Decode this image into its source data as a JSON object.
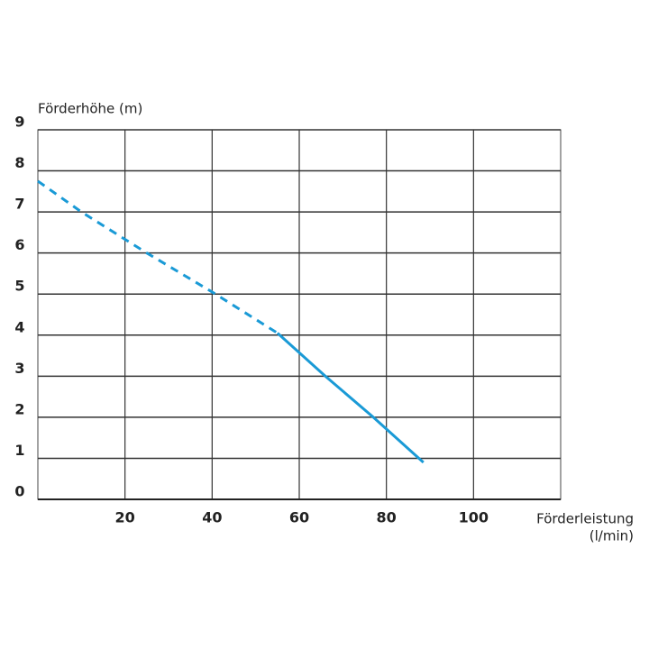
{
  "chart_data": {
    "type": "line",
    "y_label": "Förderhöhe (m)",
    "x_label": [
      "Förderleistung",
      "(l/min)"
    ],
    "xlim": [
      0,
      120
    ],
    "xticks": [
      20,
      40,
      60,
      80,
      100
    ],
    "ylim": [
      0,
      9
    ],
    "yticks": [
      0,
      1,
      2,
      3,
      4,
      5,
      6,
      7,
      8,
      9
    ],
    "grid": true,
    "series": [
      {
        "color": "#1a9ad6",
        "dashed": true,
        "x": [
          0,
          10,
          25,
          40,
          55
        ],
        "values": [
          7.75,
          7.0,
          6.0,
          5.05,
          4.05
        ]
      },
      {
        "color": "#1a9ad6",
        "dashed": false,
        "x": [
          55,
          66,
          77,
          88.5
        ],
        "values": [
          4.05,
          3.0,
          2.0,
          0.9
        ]
      }
    ]
  }
}
